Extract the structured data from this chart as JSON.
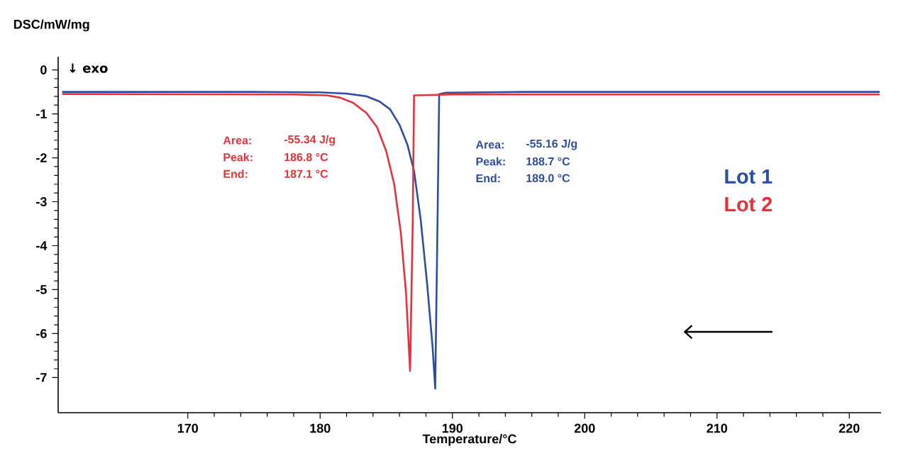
{
  "chart_data": {
    "type": "line",
    "xlabel": "Temperature/°C",
    "ylabel": "DSC/mW/mg",
    "xlim": [
      160.2,
      222.4
    ],
    "ylim": [
      -7.8,
      0.3
    ],
    "xticks": [
      170,
      180,
      190,
      200,
      210,
      220
    ],
    "yticks": [
      0,
      -1,
      -2,
      -3,
      -4,
      -5,
      -6,
      -7
    ],
    "legend": "right",
    "marker": "none",
    "line_style": "solid",
    "grid": false,
    "series": [
      {
        "name": "Lot 1",
        "color": "#2b4ea2",
        "x": [
          160.5,
          175,
          180,
          182,
          183.5,
          184.5,
          185.3,
          186,
          186.6,
          187.1,
          187.6,
          188.1,
          188.5,
          188.7,
          188.85,
          189.0,
          189.5,
          195.5,
          222.3
        ],
        "values": [
          -0.5,
          -0.5,
          -0.51,
          -0.54,
          -0.6,
          -0.72,
          -0.9,
          -1.25,
          -1.7,
          -2.3,
          -3.4,
          -4.9,
          -6.3,
          -7.25,
          -4.0,
          -0.55,
          -0.52,
          -0.5,
          -0.5
        ]
      },
      {
        "name": "Lot 2",
        "color": "#e8303a",
        "x": [
          160.5,
          178,
          180.5,
          181.5,
          182.5,
          183.5,
          184.3,
          185,
          185.6,
          186.1,
          186.5,
          186.8,
          187.0,
          187.1,
          190,
          222.3
        ],
        "values": [
          -0.55,
          -0.56,
          -0.58,
          -0.63,
          -0.75,
          -0.98,
          -1.3,
          -1.85,
          -2.6,
          -3.7,
          -5.1,
          -6.85,
          -3.5,
          -0.58,
          -0.56,
          -0.56
        ]
      }
    ],
    "annotations": [
      "↓ exo",
      "Area:",
      "-55.34 J/g",
      "Peak:",
      "186.8 °C",
      "End:",
      "187.1 °C",
      "Area:",
      "-55.16 J/g",
      "Peak:",
      "188.7 °C",
      "End:",
      "189.0 °C"
    ]
  }
}
